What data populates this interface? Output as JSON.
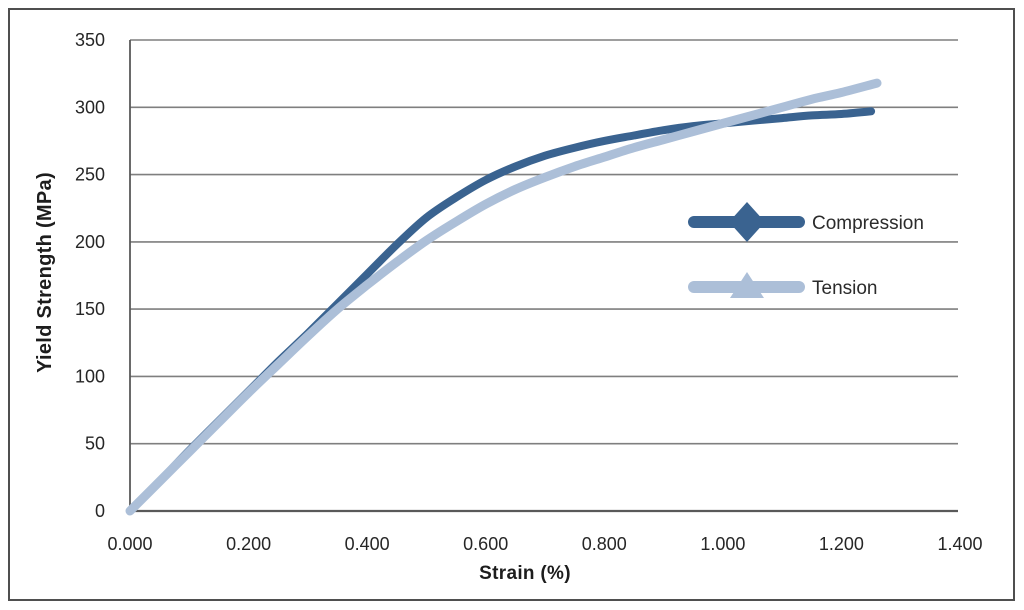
{
  "figure": {
    "background_color": "#ffffff",
    "border_color": "#4f4f4f"
  },
  "chart_data": {
    "type": "line",
    "title": "",
    "xlabel": "Strain (%)",
    "ylabel": "Yield Strength (MPa)",
    "xlim": [
      0,
      1.4
    ],
    "ylim": [
      0,
      350
    ],
    "xticks": [
      0,
      0.2,
      0.4,
      0.6,
      0.8,
      1.0,
      1.2,
      1.4
    ],
    "xtick_labels": [
      "0.000",
      "0.200",
      "0.400",
      "0.600",
      "0.800",
      "1.000",
      "1.200",
      "1.400"
    ],
    "yticks": [
      0,
      50,
      100,
      150,
      200,
      250,
      300,
      350
    ],
    "ytick_labels": [
      "0",
      "50",
      "100",
      "150",
      "200",
      "250",
      "300",
      "350"
    ],
    "grid": "horizontal-only",
    "gridline_color": "#7f7f7f",
    "axis_line_color": "#595959",
    "tick_label_color": "#262626",
    "legend": {
      "position": "inside-right",
      "text_color": "#2b2b2b",
      "entries": [
        {
          "label": "Compression",
          "color": "#3A6390",
          "marker": "diamond"
        },
        {
          "label": "Tension",
          "color": "#ACBFD8",
          "marker": "triangle"
        }
      ]
    },
    "series": [
      {
        "name": "Compression",
        "color": "#3A6390",
        "marker": "diamond",
        "line_width": 8,
        "points": [
          [
            0,
            0
          ],
          [
            0.05,
            22
          ],
          [
            0.1,
            45
          ],
          [
            0.15,
            67
          ],
          [
            0.2,
            89
          ],
          [
            0.25,
            111
          ],
          [
            0.3,
            132
          ],
          [
            0.35,
            154
          ],
          [
            0.4,
            176
          ],
          [
            0.45,
            198
          ],
          [
            0.5,
            218
          ],
          [
            0.55,
            233
          ],
          [
            0.6,
            246
          ],
          [
            0.65,
            256
          ],
          [
            0.7,
            264
          ],
          [
            0.75,
            270
          ],
          [
            0.8,
            275
          ],
          [
            0.85,
            279
          ],
          [
            0.9,
            283
          ],
          [
            0.95,
            286
          ],
          [
            1.0,
            288
          ],
          [
            1.05,
            290
          ],
          [
            1.1,
            292
          ],
          [
            1.15,
            294
          ],
          [
            1.2,
            295
          ],
          [
            1.25,
            297
          ]
        ]
      },
      {
        "name": "Tension",
        "color": "#ACBFD8",
        "marker": "triangle",
        "line_width": 9,
        "points": [
          [
            0,
            0
          ],
          [
            0.05,
            22
          ],
          [
            0.1,
            44
          ],
          [
            0.15,
            66
          ],
          [
            0.2,
            88
          ],
          [
            0.25,
            109
          ],
          [
            0.3,
            130
          ],
          [
            0.35,
            150
          ],
          [
            0.4,
            168
          ],
          [
            0.45,
            185
          ],
          [
            0.5,
            201
          ],
          [
            0.55,
            215
          ],
          [
            0.6,
            228
          ],
          [
            0.65,
            239
          ],
          [
            0.7,
            248
          ],
          [
            0.75,
            256
          ],
          [
            0.8,
            263
          ],
          [
            0.85,
            270
          ],
          [
            0.9,
            276
          ],
          [
            0.95,
            282
          ],
          [
            1.0,
            288
          ],
          [
            1.05,
            294
          ],
          [
            1.1,
            300
          ],
          [
            1.15,
            306
          ],
          [
            1.2,
            311
          ],
          [
            1.26,
            318
          ]
        ]
      }
    ]
  }
}
